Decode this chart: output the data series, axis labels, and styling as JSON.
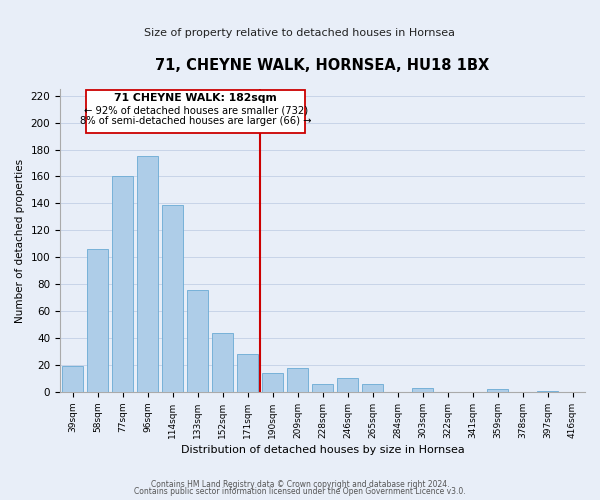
{
  "title": "71, CHEYNE WALK, HORNSEA, HU18 1BX",
  "subtitle": "Size of property relative to detached houses in Hornsea",
  "xlabel": "Distribution of detached houses by size in Hornsea",
  "ylabel": "Number of detached properties",
  "bar_labels": [
    "39sqm",
    "58sqm",
    "77sqm",
    "96sqm",
    "114sqm",
    "133sqm",
    "152sqm",
    "171sqm",
    "190sqm",
    "209sqm",
    "228sqm",
    "246sqm",
    "265sqm",
    "284sqm",
    "303sqm",
    "322sqm",
    "341sqm",
    "359sqm",
    "378sqm",
    "397sqm",
    "416sqm"
  ],
  "bar_values": [
    19,
    106,
    160,
    175,
    139,
    76,
    44,
    28,
    14,
    18,
    6,
    10,
    6,
    0,
    3,
    0,
    0,
    2,
    0,
    1,
    0
  ],
  "bar_color": "#aecde8",
  "bar_edge_color": "#6aaad4",
  "ylim": [
    0,
    225
  ],
  "yticks": [
    0,
    20,
    40,
    60,
    80,
    100,
    120,
    140,
    160,
    180,
    200,
    220
  ],
  "property_label": "71 CHEYNE WALK: 182sqm",
  "annotation_line1": "← 92% of detached houses are smaller (732)",
  "annotation_line2": "8% of semi-detached houses are larger (66) →",
  "vline_color": "#cc0000",
  "vline_position": 7.5,
  "annotation_box_edge": "#cc0000",
  "footer_line1": "Contains HM Land Registry data © Crown copyright and database right 2024.",
  "footer_line2": "Contains public sector information licensed under the Open Government Licence v3.0.",
  "background_color": "#e8eef8",
  "plot_background": "#e8eef8",
  "grid_color": "#c8d4e8"
}
